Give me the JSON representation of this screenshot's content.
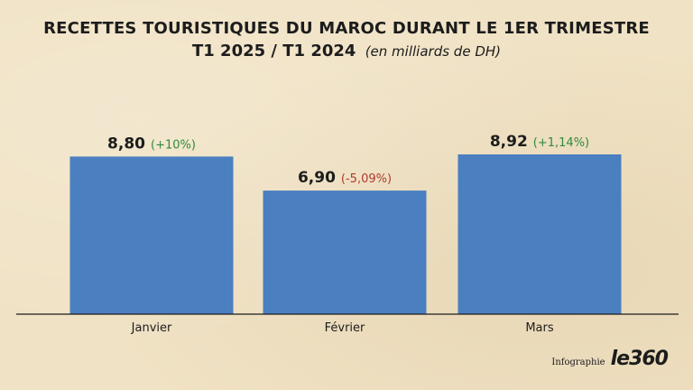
{
  "title": {
    "line1": "RECETTES TOURISTIQUES DU MAROC DURANT LE 1ER TRIMESTRE",
    "line2": "T1 2025 / T1 2024",
    "unit": "(en milliards de DH)"
  },
  "colors": {
    "bar": "#4a7fc0",
    "positive": "#2e8b3a",
    "negative": "#b03a2e",
    "text": "#1c1c1c"
  },
  "chart_data": {
    "type": "bar",
    "categories": [
      "Janvier",
      "Février",
      "Mars"
    ],
    "values": [
      8.8,
      6.9,
      8.92
    ],
    "value_labels": [
      "8,80",
      "6,90",
      "8,92"
    ],
    "change_labels": [
      "(+10%)",
      "(-5,09%)",
      "(+1,14%)"
    ],
    "change_signs": [
      "positive",
      "negative",
      "positive"
    ],
    "ylim": [
      0,
      10
    ],
    "grid": false,
    "legend": "none"
  },
  "brand": {
    "caption": "Infographie",
    "logo": "le360"
  }
}
